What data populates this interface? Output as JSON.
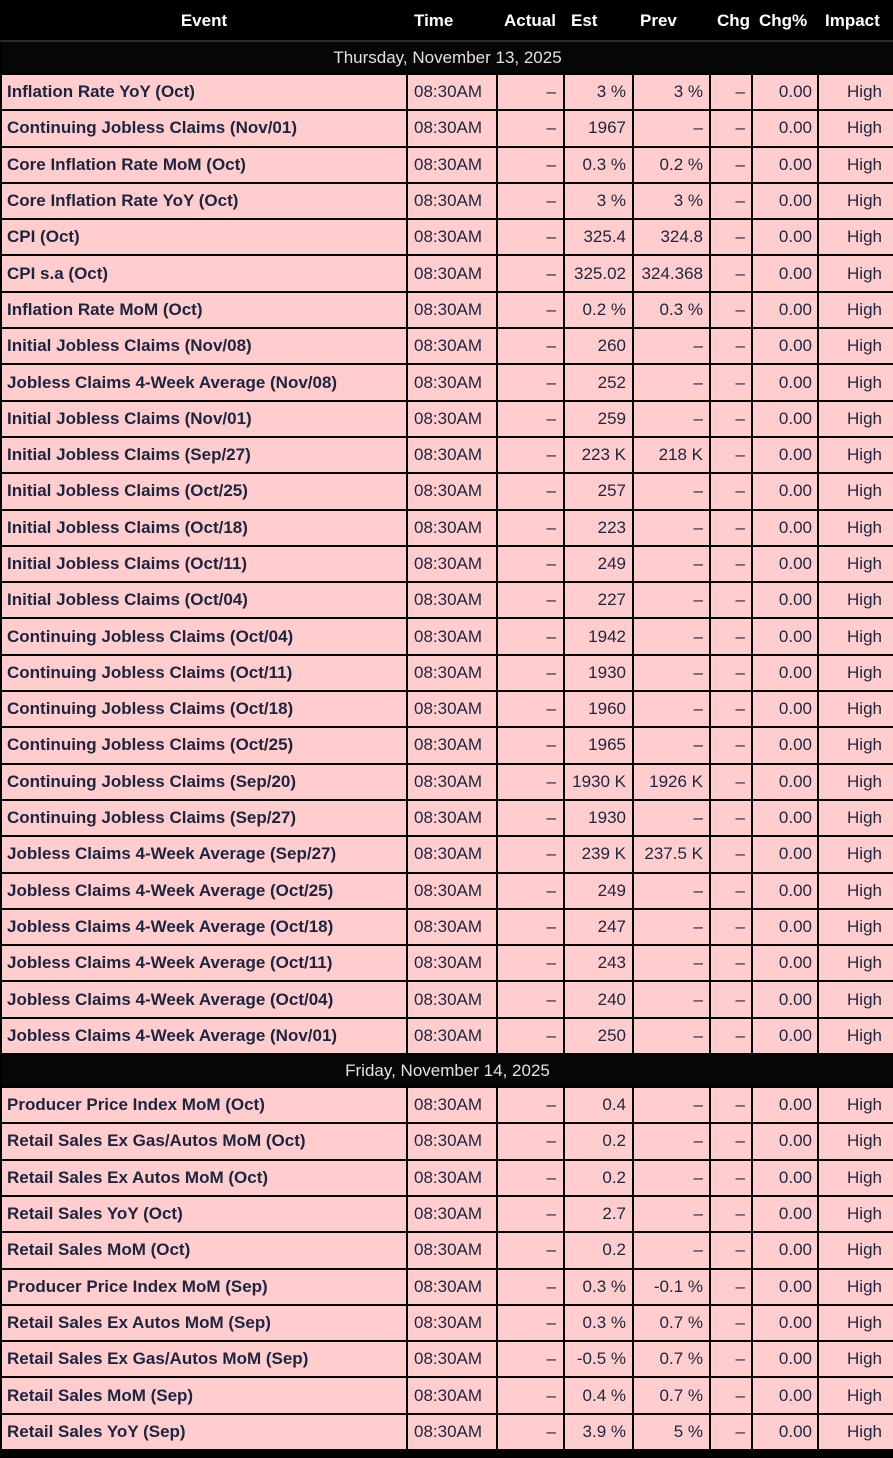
{
  "colors": {
    "row_background": "#ffcdcd",
    "row_text": "#1c2540",
    "header_background": "#000000",
    "header_text": "#ffffff",
    "date_row_background": "#060606",
    "date_row_text": "#e7e0e0",
    "border": "#000000"
  },
  "table": {
    "columns": [
      {
        "key": "event",
        "label": "Event"
      },
      {
        "key": "time",
        "label": "Time"
      },
      {
        "key": "actual",
        "label": "Actual"
      },
      {
        "key": "est",
        "label": "Est"
      },
      {
        "key": "prev",
        "label": "Prev"
      },
      {
        "key": "chg",
        "label": "Chg"
      },
      {
        "key": "chgpct",
        "label": "Chg%"
      },
      {
        "key": "impact",
        "label": "Impact"
      }
    ],
    "sections": [
      {
        "date": "Thursday, November 13, 2025",
        "rows": [
          {
            "event": "Inflation Rate YoY (Oct)",
            "time": "08:30AM",
            "actual": "–",
            "est": "3 %",
            "prev": "3 %",
            "chg": "–",
            "chgpct": "0.00",
            "impact": "High"
          },
          {
            "event": "Continuing Jobless Claims (Nov/01)",
            "time": "08:30AM",
            "actual": "–",
            "est": "1967",
            "prev": "–",
            "chg": "–",
            "chgpct": "0.00",
            "impact": "High"
          },
          {
            "event": "Core Inflation Rate MoM (Oct)",
            "time": "08:30AM",
            "actual": "–",
            "est": "0.3 %",
            "prev": "0.2 %",
            "chg": "–",
            "chgpct": "0.00",
            "impact": "High"
          },
          {
            "event": "Core Inflation Rate YoY (Oct)",
            "time": "08:30AM",
            "actual": "–",
            "est": "3 %",
            "prev": "3 %",
            "chg": "–",
            "chgpct": "0.00",
            "impact": "High"
          },
          {
            "event": "CPI (Oct)",
            "time": "08:30AM",
            "actual": "–",
            "est": "325.4",
            "prev": "324.8",
            "chg": "–",
            "chgpct": "0.00",
            "impact": "High"
          },
          {
            "event": "CPI s.a (Oct)",
            "time": "08:30AM",
            "actual": "–",
            "est": "325.02",
            "prev": "324.368",
            "chg": "–",
            "chgpct": "0.00",
            "impact": "High"
          },
          {
            "event": "Inflation Rate MoM (Oct)",
            "time": "08:30AM",
            "actual": "–",
            "est": "0.2 %",
            "prev": "0.3 %",
            "chg": "–",
            "chgpct": "0.00",
            "impact": "High"
          },
          {
            "event": "Initial Jobless Claims (Nov/08)",
            "time": "08:30AM",
            "actual": "–",
            "est": "260",
            "prev": "–",
            "chg": "–",
            "chgpct": "0.00",
            "impact": "High"
          },
          {
            "event": "Jobless Claims 4-Week Average (Nov/08)",
            "time": "08:30AM",
            "actual": "–",
            "est": "252",
            "prev": "–",
            "chg": "–",
            "chgpct": "0.00",
            "impact": "High"
          },
          {
            "event": "Initial Jobless Claims (Nov/01)",
            "time": "08:30AM",
            "actual": "–",
            "est": "259",
            "prev": "–",
            "chg": "–",
            "chgpct": "0.00",
            "impact": "High"
          },
          {
            "event": "Initial Jobless Claims (Sep/27)",
            "time": "08:30AM",
            "actual": "–",
            "est": "223 K",
            "prev": "218 K",
            "chg": "–",
            "chgpct": "0.00",
            "impact": "High"
          },
          {
            "event": "Initial Jobless Claims (Oct/25)",
            "time": "08:30AM",
            "actual": "–",
            "est": "257",
            "prev": "–",
            "chg": "–",
            "chgpct": "0.00",
            "impact": "High"
          },
          {
            "event": "Initial Jobless Claims (Oct/18)",
            "time": "08:30AM",
            "actual": "–",
            "est": "223",
            "prev": "–",
            "chg": "–",
            "chgpct": "0.00",
            "impact": "High"
          },
          {
            "event": "Initial Jobless Claims (Oct/11)",
            "time": "08:30AM",
            "actual": "–",
            "est": "249",
            "prev": "–",
            "chg": "–",
            "chgpct": "0.00",
            "impact": "High"
          },
          {
            "event": "Initial Jobless Claims (Oct/04)",
            "time": "08:30AM",
            "actual": "–",
            "est": "227",
            "prev": "–",
            "chg": "–",
            "chgpct": "0.00",
            "impact": "High"
          },
          {
            "event": "Continuing Jobless Claims (Oct/04)",
            "time": "08:30AM",
            "actual": "–",
            "est": "1942",
            "prev": "–",
            "chg": "–",
            "chgpct": "0.00",
            "impact": "High"
          },
          {
            "event": "Continuing Jobless Claims (Oct/11)",
            "time": "08:30AM",
            "actual": "–",
            "est": "1930",
            "prev": "–",
            "chg": "–",
            "chgpct": "0.00",
            "impact": "High"
          },
          {
            "event": "Continuing Jobless Claims (Oct/18)",
            "time": "08:30AM",
            "actual": "–",
            "est": "1960",
            "prev": "–",
            "chg": "–",
            "chgpct": "0.00",
            "impact": "High"
          },
          {
            "event": "Continuing Jobless Claims (Oct/25)",
            "time": "08:30AM",
            "actual": "–",
            "est": "1965",
            "prev": "–",
            "chg": "–",
            "chgpct": "0.00",
            "impact": "High"
          },
          {
            "event": "Continuing Jobless Claims (Sep/20)",
            "time": "08:30AM",
            "actual": "–",
            "est": "1930 K",
            "prev": "1926 K",
            "chg": "–",
            "chgpct": "0.00",
            "impact": "High"
          },
          {
            "event": "Continuing Jobless Claims (Sep/27)",
            "time": "08:30AM",
            "actual": "–",
            "est": "1930",
            "prev": "–",
            "chg": "–",
            "chgpct": "0.00",
            "impact": "High"
          },
          {
            "event": "Jobless Claims 4-Week Average (Sep/27)",
            "time": "08:30AM",
            "actual": "–",
            "est": "239 K",
            "prev": "237.5 K",
            "chg": "–",
            "chgpct": "0.00",
            "impact": "High"
          },
          {
            "event": "Jobless Claims 4-Week Average (Oct/25)",
            "time": "08:30AM",
            "actual": "–",
            "est": "249",
            "prev": "–",
            "chg": "–",
            "chgpct": "0.00",
            "impact": "High"
          },
          {
            "event": "Jobless Claims 4-Week Average (Oct/18)",
            "time": "08:30AM",
            "actual": "–",
            "est": "247",
            "prev": "–",
            "chg": "–",
            "chgpct": "0.00",
            "impact": "High"
          },
          {
            "event": "Jobless Claims 4-Week Average (Oct/11)",
            "time": "08:30AM",
            "actual": "–",
            "est": "243",
            "prev": "–",
            "chg": "–",
            "chgpct": "0.00",
            "impact": "High"
          },
          {
            "event": "Jobless Claims 4-Week Average (Oct/04)",
            "time": "08:30AM",
            "actual": "–",
            "est": "240",
            "prev": "–",
            "chg": "–",
            "chgpct": "0.00",
            "impact": "High"
          },
          {
            "event": "Jobless Claims 4-Week Average (Nov/01)",
            "time": "08:30AM",
            "actual": "–",
            "est": "250",
            "prev": "–",
            "chg": "–",
            "chgpct": "0.00",
            "impact": "High"
          }
        ]
      },
      {
        "date": "Friday, November 14, 2025",
        "rows": [
          {
            "event": "Producer Price Index MoM (Oct)",
            "time": "08:30AM",
            "actual": "–",
            "est": "0.4",
            "prev": "–",
            "chg": "–",
            "chgpct": "0.00",
            "impact": "High"
          },
          {
            "event": "Retail Sales Ex Gas/Autos MoM (Oct)",
            "time": "08:30AM",
            "actual": "–",
            "est": "0.2",
            "prev": "–",
            "chg": "–",
            "chgpct": "0.00",
            "impact": "High"
          },
          {
            "event": "Retail Sales Ex Autos MoM (Oct)",
            "time": "08:30AM",
            "actual": "–",
            "est": "0.2",
            "prev": "–",
            "chg": "–",
            "chgpct": "0.00",
            "impact": "High"
          },
          {
            "event": "Retail Sales YoY (Oct)",
            "time": "08:30AM",
            "actual": "–",
            "est": "2.7",
            "prev": "–",
            "chg": "–",
            "chgpct": "0.00",
            "impact": "High"
          },
          {
            "event": "Retail Sales MoM (Oct)",
            "time": "08:30AM",
            "actual": "–",
            "est": "0.2",
            "prev": "–",
            "chg": "–",
            "chgpct": "0.00",
            "impact": "High"
          },
          {
            "event": "Producer Price Index MoM (Sep)",
            "time": "08:30AM",
            "actual": "–",
            "est": "0.3 %",
            "prev": "-0.1 %",
            "chg": "–",
            "chgpct": "0.00",
            "impact": "High"
          },
          {
            "event": "Retail Sales Ex Autos MoM (Sep)",
            "time": "08:30AM",
            "actual": "–",
            "est": "0.3 %",
            "prev": "0.7 %",
            "chg": "–",
            "chgpct": "0.00",
            "impact": "High"
          },
          {
            "event": "Retail Sales Ex Gas/Autos MoM (Sep)",
            "time": "08:30AM",
            "actual": "–",
            "est": "-0.5 %",
            "prev": "0.7 %",
            "chg": "–",
            "chgpct": "0.00",
            "impact": "High"
          },
          {
            "event": "Retail Sales MoM (Sep)",
            "time": "08:30AM",
            "actual": "–",
            "est": "0.4 %",
            "prev": "0.7 %",
            "chg": "–",
            "chgpct": "0.00",
            "impact": "High"
          },
          {
            "event": "Retail Sales YoY (Sep)",
            "time": "08:30AM",
            "actual": "–",
            "est": "3.9 %",
            "prev": "5 %",
            "chg": "–",
            "chgpct": "0.00",
            "impact": "High"
          }
        ]
      }
    ]
  }
}
